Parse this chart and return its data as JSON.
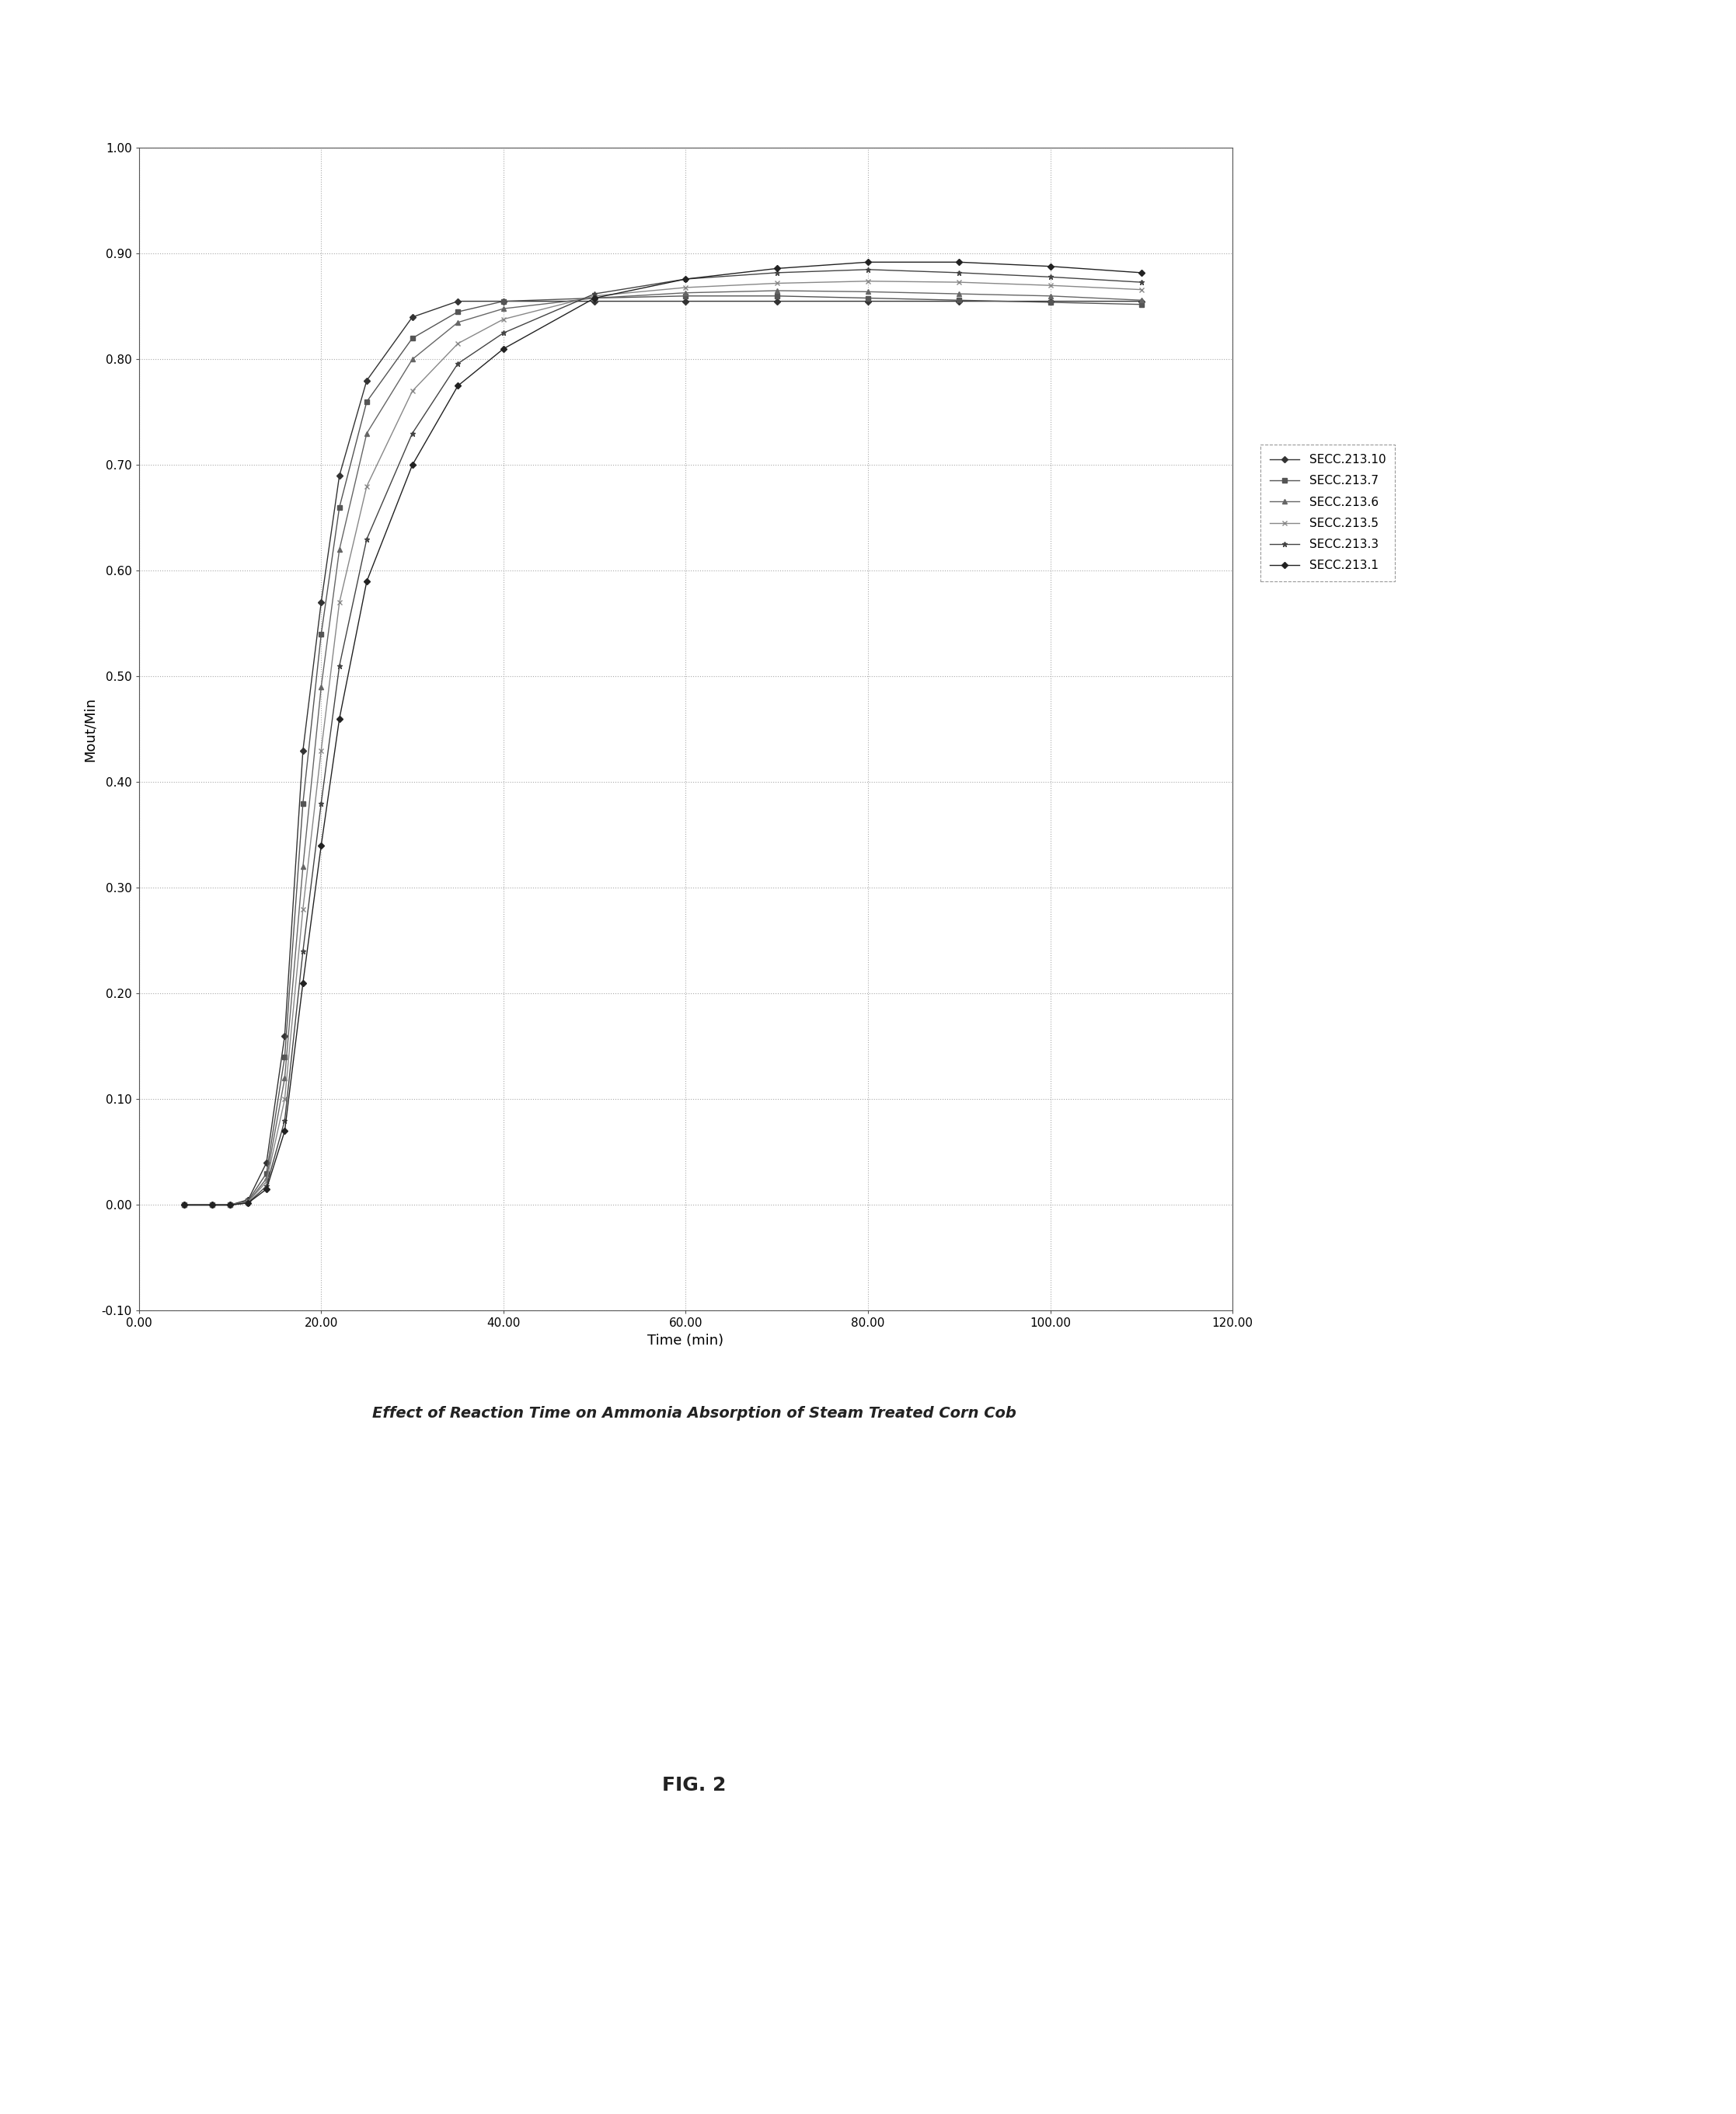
{
  "title": "Effect of Reaction Time on Ammonia Absorption of Steam Treated Corn Cob",
  "xlabel": "Time (min)",
  "ylabel": "Mout/Min",
  "fig_label": "FIG. 2",
  "xlim": [
    0,
    120
  ],
  "ylim": [
    -0.1,
    1.0
  ],
  "xticks": [
    0,
    20,
    40,
    60,
    80,
    100,
    120
  ],
  "xtick_labels": [
    "0.00",
    "20.00",
    "40.00",
    "60.00",
    "80.00",
    "100.00",
    "120.00"
  ],
  "yticks": [
    -0.1,
    0.0,
    0.1,
    0.2,
    0.3,
    0.4,
    0.5,
    0.6,
    0.7,
    0.8,
    0.9,
    1.0
  ],
  "ytick_labels": [
    "-0.10",
    "0.00",
    "0.10",
    "0.20",
    "0.30",
    "0.40",
    "0.50",
    "0.60",
    "0.70",
    "0.80",
    "0.90",
    "1.00"
  ],
  "series": [
    {
      "label": "SECC.213.10",
      "color": "#333333",
      "linestyle": "solid",
      "marker": "D",
      "markersize": 4,
      "x": [
        5,
        8,
        10,
        12,
        14,
        16,
        18,
        20,
        22,
        25,
        30,
        35,
        40,
        50,
        60,
        70,
        80,
        90,
        100,
        110
      ],
      "y": [
        0.0,
        0.0,
        0.0,
        0.005,
        0.04,
        0.16,
        0.43,
        0.57,
        0.69,
        0.78,
        0.84,
        0.855,
        0.855,
        0.855,
        0.855,
        0.855,
        0.855,
        0.855,
        0.855,
        0.855
      ]
    },
    {
      "label": "SECC.213.7",
      "color": "#555555",
      "linestyle": "solid",
      "marker": "s",
      "markersize": 4,
      "x": [
        5,
        8,
        10,
        12,
        14,
        16,
        18,
        20,
        22,
        25,
        30,
        35,
        40,
        50,
        60,
        70,
        80,
        90,
        100,
        110
      ],
      "y": [
        0.0,
        0.0,
        0.0,
        0.004,
        0.03,
        0.14,
        0.38,
        0.54,
        0.66,
        0.76,
        0.82,
        0.845,
        0.855,
        0.858,
        0.86,
        0.86,
        0.858,
        0.856,
        0.854,
        0.852
      ]
    },
    {
      "label": "SECC.213.6",
      "color": "#666666",
      "linestyle": "solid",
      "marker": "^",
      "markersize": 4,
      "x": [
        5,
        8,
        10,
        12,
        14,
        16,
        18,
        20,
        22,
        25,
        30,
        35,
        40,
        50,
        60,
        70,
        80,
        90,
        100,
        110
      ],
      "y": [
        0.0,
        0.0,
        0.0,
        0.003,
        0.025,
        0.12,
        0.32,
        0.49,
        0.62,
        0.73,
        0.8,
        0.835,
        0.848,
        0.858,
        0.863,
        0.865,
        0.864,
        0.862,
        0.86,
        0.856
      ]
    },
    {
      "label": "SECC.213.5",
      "color": "#888888",
      "linestyle": "solid",
      "marker": "x",
      "markersize": 5,
      "x": [
        5,
        8,
        10,
        12,
        14,
        16,
        18,
        20,
        22,
        25,
        30,
        35,
        40,
        50,
        60,
        70,
        80,
        90,
        100,
        110
      ],
      "y": [
        0.0,
        0.0,
        0.0,
        0.003,
        0.022,
        0.1,
        0.28,
        0.43,
        0.57,
        0.68,
        0.77,
        0.815,
        0.838,
        0.86,
        0.868,
        0.872,
        0.874,
        0.873,
        0.87,
        0.866
      ]
    },
    {
      "label": "SECC.213.3",
      "color": "#444444",
      "linestyle": "solid",
      "marker": "*",
      "markersize": 5,
      "x": [
        5,
        8,
        10,
        12,
        14,
        16,
        18,
        20,
        22,
        25,
        30,
        35,
        40,
        50,
        60,
        70,
        80,
        90,
        100,
        110
      ],
      "y": [
        0.0,
        0.0,
        0.0,
        0.002,
        0.018,
        0.08,
        0.24,
        0.38,
        0.51,
        0.63,
        0.73,
        0.796,
        0.825,
        0.862,
        0.876,
        0.882,
        0.885,
        0.882,
        0.878,
        0.873
      ]
    },
    {
      "label": "SECC.213.1",
      "color": "#222222",
      "linestyle": "solid",
      "marker": "D",
      "markersize": 4,
      "x": [
        5,
        8,
        10,
        12,
        14,
        16,
        18,
        20,
        22,
        25,
        30,
        35,
        40,
        50,
        60,
        70,
        80,
        90,
        100,
        110
      ],
      "y": [
        0.0,
        0.0,
        0.0,
        0.002,
        0.015,
        0.07,
        0.21,
        0.34,
        0.46,
        0.59,
        0.7,
        0.775,
        0.81,
        0.858,
        0.876,
        0.886,
        0.892,
        0.892,
        0.888,
        0.882
      ]
    }
  ],
  "background_color": "#ffffff",
  "grid_color": "#aaaaaa",
  "legend_fontsize": 11,
  "axis_fontsize": 13,
  "title_fontsize": 14,
  "tick_fontsize": 11,
  "figlabel_fontsize": 18
}
